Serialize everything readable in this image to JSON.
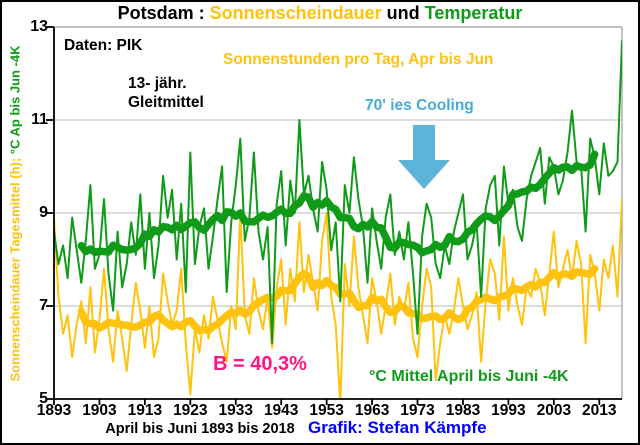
{
  "title": {
    "part1": "Potsdam : ",
    "part2": "Sonnenscheindauer",
    "part3": " und ",
    "part4": "Temperatur"
  },
  "colors": {
    "yellow": "#ffc20e",
    "green": "#0f9b18",
    "cyan_text": "#45acd5",
    "cyan_arrow": "#5cb4d9",
    "pink": "#ff1581",
    "blue": "#0000ff",
    "black": "#000000",
    "grid": "#c8c8c8",
    "frame": "#999999"
  },
  "annotations": {
    "daten": "Daten: PIK",
    "gleitmittel_line1": "13- jähr.",
    "gleitmittel_line2": "Gleitmittel",
    "sonnenstunden": "Sonnenstunden pro Tag, Apr bis Jun",
    "cooling": "70' ies Cooling",
    "b_value": "B = 40,3%",
    "c_mittel": "°C Mittel April bis Juni -4K",
    "xaxis_label": "April bis Juni 1893 bis 2018",
    "credit": "Grafik: Stefan Kämpfe"
  },
  "y_axis": {
    "label_sun": "Sonnenscheindauer Tagesmittel (h);",
    "label_temp": " °C Ap bis Jun -4K",
    "ticks": [
      13,
      11,
      9,
      7,
      5
    ],
    "min": 5,
    "max": 13
  },
  "x_axis": {
    "tick_years": [
      1893,
      1903,
      1913,
      1923,
      1933,
      1943,
      1953,
      1963,
      1973,
      1983,
      1993,
      2003,
      2013
    ],
    "min": 1893,
    "max": 2018
  },
  "chart_data": {
    "type": "line",
    "title": "Potsdam : Sonnenscheindauer und Temperatur",
    "xlabel": "April bis Juni 1893 bis 2018",
    "ylabel": "Sonnenscheindauer Tagesmittel (h); °C Ap bis Jun -4K",
    "x_start": 1893,
    "x_end": 2018,
    "ylim": [
      5,
      13
    ],
    "grid": true,
    "smoothing_window_years": 13,
    "series": [
      {
        "name": "Sonnenstunden pro Tag, Apr bis Jun",
        "color_key": "yellow",
        "values": [
          8.9,
          7.2,
          6.4,
          6.8,
          5.9,
          6.6,
          7.1,
          6.2,
          7.4,
          6.0,
          6.7,
          7.8,
          6.5,
          5.8,
          6.9,
          6.3,
          5.6,
          6.6,
          7.5,
          6.9,
          6.1,
          7.0,
          5.9,
          6.3,
          7.7,
          7.1,
          6.6,
          6.9,
          7.8,
          6.2,
          5.1,
          6.5,
          6.0,
          6.8,
          6.3,
          7.2,
          6.7,
          6.2,
          5.8,
          7.0,
          6.5,
          9.0,
          6.8,
          6.4,
          7.6,
          6.9,
          6.5,
          7.2,
          6.1,
          7.4,
          8.0,
          6.6,
          7.8,
          7.1,
          8.8,
          7.3,
          8.1,
          7.5,
          6.9,
          8.4,
          9.0,
          7.2,
          6.6,
          4.9,
          7.9,
          7.0,
          8.5,
          7.4,
          6.8,
          6.2,
          7.6,
          7.1,
          6.4,
          7.0,
          7.7,
          6.6,
          7.2,
          6.9,
          7.5,
          6.3,
          5.9,
          7.0,
          7.8,
          7.4,
          5.4,
          6.2,
          6.8,
          6.4,
          6.9,
          7.6,
          7.0,
          6.5,
          6.8,
          7.3,
          5.8,
          7.1,
          8.0,
          7.7,
          6.7,
          8.5,
          6.9,
          7.6,
          7.0,
          6.6,
          7.4,
          7.2,
          7.8,
          7.5,
          6.8,
          7.7,
          8.6,
          7.4,
          7.8,
          8.2,
          7.6,
          8.4,
          7.9,
          6.2,
          8.1,
          7.7,
          6.9,
          8.0,
          7.6,
          8.3,
          7.2,
          9.3
        ]
      },
      {
        "name": "°C Mittel April bis Juni -4K",
        "color_key": "green",
        "values": [
          8.6,
          7.9,
          8.3,
          7.6,
          8.9,
          8.2,
          7.5,
          8.4,
          9.6,
          7.8,
          8.1,
          9.3,
          7.7,
          6.9,
          8.6,
          7.4,
          7.9,
          8.8,
          8.1,
          9.4,
          7.8,
          9.0,
          7.6,
          8.3,
          9.8,
          8.9,
          9.5,
          8.0,
          9.2,
          7.3,
          10.3,
          7.9,
          8.7,
          9.1,
          7.8,
          8.5,
          9.3,
          10.0,
          7.3,
          8.8,
          9.6,
          10.6,
          8.4,
          8.9,
          10.3,
          8.6,
          8.0,
          8.7,
          6.2,
          9.2,
          9.9,
          8.3,
          9.7,
          9.0,
          11.0,
          9.4,
          9.8,
          9.1,
          8.6,
          10.1,
          9.5,
          8.2,
          8.8,
          7.1,
          9.6,
          9.0,
          10.2,
          9.3,
          8.7,
          7.5,
          9.1,
          8.4,
          7.8,
          8.9,
          9.4,
          8.1,
          8.6,
          8.0,
          8.8,
          7.7,
          6.4,
          8.5,
          9.2,
          8.9,
          7.9,
          7.6,
          8.3,
          7.9,
          8.6,
          9.0,
          9.4,
          8.0,
          8.3,
          8.8,
          7.2,
          9.1,
          9.6,
          9.8,
          8.3,
          10.0,
          9.2,
          9.5,
          8.7,
          8.4,
          9.3,
          9.8,
          10.1,
          10.4,
          9.2,
          10.2,
          10.0,
          9.4,
          9.7,
          10.3,
          11.2,
          10.1,
          10.0,
          8.6,
          10.6,
          10.2,
          9.4,
          10.5,
          9.8,
          9.9,
          10.1,
          12.7
        ]
      }
    ]
  }
}
